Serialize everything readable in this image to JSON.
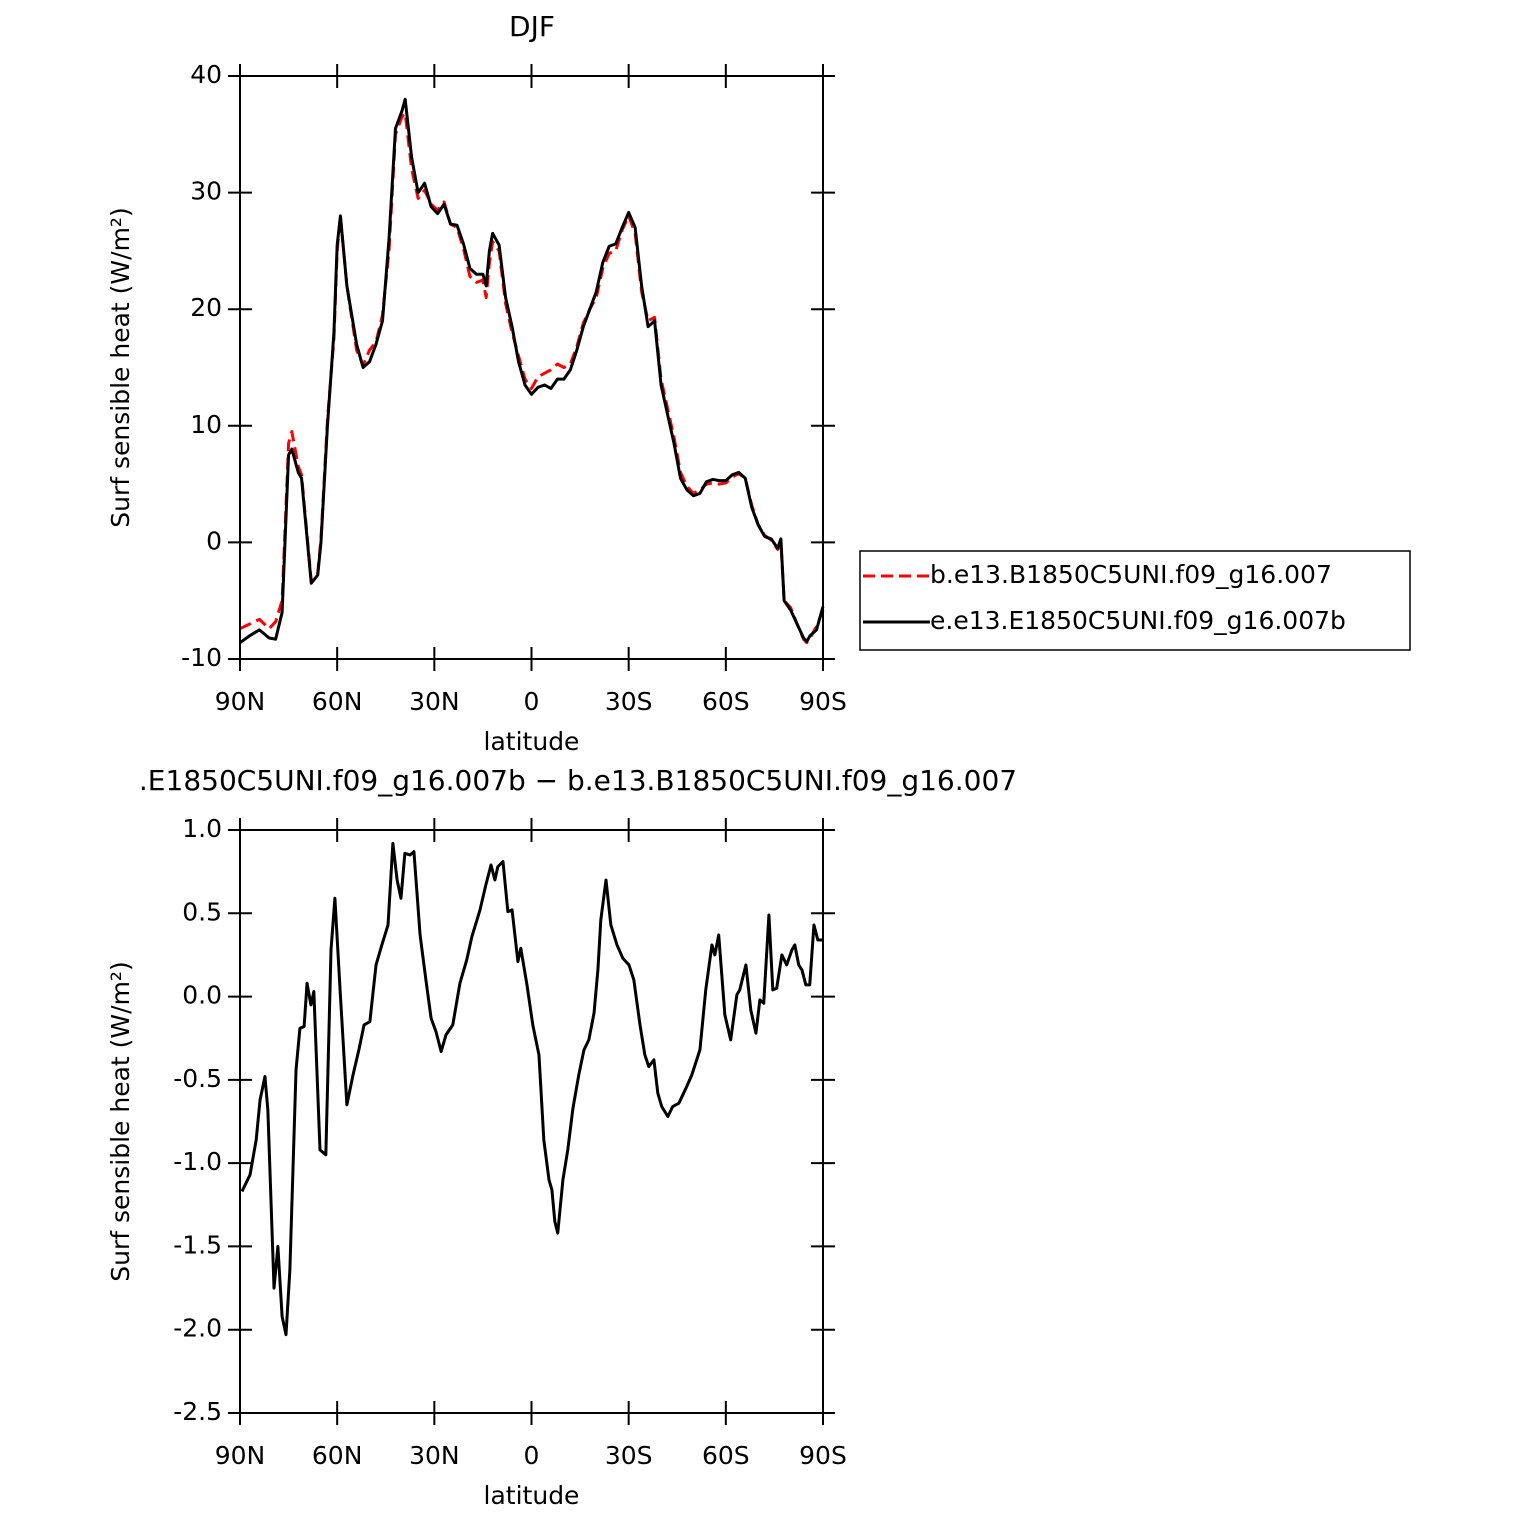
{
  "chart_data": [
    {
      "type": "line",
      "title": "DJF",
      "xlabel": "latitude",
      "ylabel": "Surf sensible heat (W/m²)",
      "xlim": [
        90,
        -90
      ],
      "ylim": [
        -10,
        40
      ],
      "xticks": [
        {
          "value": 90,
          "label": "90N"
        },
        {
          "value": 60,
          "label": "60N"
        },
        {
          "value": 30,
          "label": "30N"
        },
        0,
        {
          "value": -30,
          "label": "30S"
        },
        {
          "value": -60,
          "label": "60S"
        },
        {
          "value": -90,
          "label": "90S"
        }
      ],
      "yticks": [
        -10,
        0,
        10,
        20,
        30,
        40
      ],
      "legend": "right",
      "x": [
        90,
        87,
        84,
        81,
        79,
        77,
        75,
        74,
        72,
        71,
        68,
        66,
        65,
        63,
        61,
        60,
        59,
        57,
        54,
        52,
        50,
        48,
        46,
        44,
        42,
        40,
        39,
        37,
        35,
        33,
        31,
        29,
        27,
        25,
        23,
        21,
        19,
        17,
        15,
        14,
        13,
        12,
        10,
        8,
        6,
        4,
        2,
        0,
        -2,
        -4,
        -6,
        -8,
        -10,
        -12,
        -14,
        -16,
        -18,
        -20,
        -22,
        -24,
        -26,
        -28,
        -30,
        -32,
        -34,
        -36,
        -38,
        -40,
        -42,
        -44,
        -46,
        -48,
        -50,
        -52,
        -54,
        -56,
        -58,
        -60,
        -62,
        -64,
        -66,
        -68,
        -70,
        -72,
        -74,
        -76,
        -77,
        -78,
        -80,
        -82,
        -84,
        -85,
        -86,
        -88,
        -90
      ],
      "series": [
        {
          "name": "b.e13.B1850C5UNI.f09_g16.007",
          "color": "#ff0000",
          "dashed": true,
          "values": [
            -7.4,
            -7.0,
            -6.6,
            -7.4,
            -6.8,
            -5,
            8.5,
            9.5,
            6.5,
            5.8,
            -3.3,
            -2.6,
            0.3,
            10.5,
            17.5,
            25,
            28,
            22,
            16.5,
            15.2,
            16.5,
            17.2,
            19.5,
            25,
            35,
            36.5,
            36.8,
            32,
            29.5,
            30.2,
            29,
            28.5,
            29.2,
            27.3,
            27,
            25.2,
            22.8,
            22.3,
            22.5,
            21,
            24,
            25.8,
            25,
            20.5,
            18,
            16,
            14,
            13.2,
            14.2,
            14.5,
            14.8,
            15.3,
            15,
            15.3,
            16.8,
            18.8,
            20,
            21,
            23.5,
            24.8,
            25,
            26.8,
            28,
            26.5,
            21.5,
            19,
            19.3,
            14,
            11.5,
            9,
            6,
            4.8,
            4.2,
            4.5,
            5,
            5.1,
            5,
            5.1,
            5.6,
            5.9,
            5.5,
            3.2,
            1.5,
            0.6,
            0.2,
            -0.6,
            0,
            -5,
            -5.6,
            -7,
            -8.3,
            -8.6,
            -8.2,
            -7.2,
            -5.8
          ]
        },
        {
          "name": "e.e13.E1850C5UNI.f09_g16.007b",
          "color": "#000000",
          "dashed": false,
          "values": [
            -8.6,
            -8.0,
            -7.5,
            -8.2,
            -8.3,
            -6,
            7.5,
            8,
            6,
            5.5,
            -3.5,
            -2.8,
            0,
            10,
            18,
            25.5,
            28,
            22,
            17,
            15,
            15.5,
            17,
            19,
            26,
            35.5,
            37,
            38,
            33,
            30,
            30.8,
            28.8,
            28.2,
            29,
            27.3,
            27.2,
            25.6,
            23.5,
            23,
            23,
            22,
            25,
            26.5,
            25.5,
            21,
            18.5,
            15.5,
            13.5,
            12.7,
            13.3,
            13.5,
            13.2,
            14,
            14,
            14.8,
            16.5,
            18.5,
            20,
            21.5,
            24,
            25.4,
            25.6,
            27,
            28.3,
            27,
            22,
            18.5,
            19,
            13.5,
            11,
            8.5,
            5.5,
            4.5,
            4,
            4.2,
            5.2,
            5.4,
            5.3,
            5.3,
            5.8,
            6,
            5.5,
            3,
            1.5,
            0.5,
            0.3,
            -0.5,
            0.3,
            -5,
            -5.8,
            -7,
            -8.2,
            -8.5,
            -8,
            -7.5,
            -5.5
          ]
        }
      ]
    },
    {
      "type": "line",
      "title": ".E1850C5UNI.f09_g16.007b − b.e13.B1850C5UNI.f09_g16.007",
      "xlabel": "latitude",
      "ylabel": "Surf sensible heat (W/m²)",
      "xlim": [
        90,
        -90
      ],
      "ylim": [
        -2.5,
        1.0
      ],
      "xticks": [
        {
          "value": 90,
          "label": "90N"
        },
        {
          "value": 60,
          "label": "60N"
        },
        {
          "value": 30,
          "label": "30N"
        },
        0,
        {
          "value": -30,
          "label": "30S"
        },
        {
          "value": -60,
          "label": "60S"
        },
        {
          "value": -90,
          "label": "90S"
        }
      ],
      "yticks": [
        -2.5,
        {
          "value": -2,
          "label": "-2.0"
        },
        -1.5,
        {
          "value": -1,
          "label": "-1.0"
        },
        -0.5,
        {
          "value": 0,
          "label": "0.0"
        },
        0.5,
        {
          "value": 1,
          "label": "1.0"
        }
      ],
      "color": "#000000",
      "x": [
        89.4,
        86.9,
        85,
        83.8,
        82.3,
        81.4,
        79.5,
        78.3,
        77,
        75.8,
        74.6,
        72.7,
        71.5,
        70.2,
        69.3,
        68.1,
        67.2,
        65.3,
        63.5,
        61.9,
        60.7,
        59.1,
        57,
        55.1,
        53.3,
        51.7,
        49.9,
        48,
        46.2,
        44.3,
        42.8,
        41.5,
        40.3,
        39.1,
        37.5,
        36.3,
        34.4,
        32.6,
        31,
        29.5,
        27.9,
        26.4,
        24.3,
        22.1,
        20,
        18.4,
        15.9,
        14.1,
        12.5,
        11.3,
        10.4,
        8.8,
        7.3,
        6,
        4.2,
        3.3,
        1.4,
        -0.4,
        -2.3,
        -3.8,
        -5.4,
        -6.3,
        -7.2,
        -8.1,
        -9.7,
        -11.2,
        -12.8,
        -14.6,
        -16.2,
        -17.7,
        -19.3,
        -20.5,
        -21.4,
        -23,
        -24.5,
        -26.4,
        -28.2,
        -30.1,
        -31.6,
        -33.5,
        -35,
        -36.2,
        -37.8,
        -39,
        -40.2,
        -42.1,
        -43.6,
        -45.5,
        -47.7,
        -49.5,
        -52,
        -53.8,
        -55.7,
        -56.6,
        -57.8,
        -59.7,
        -61.5,
        -63.4,
        -64.3,
        -66.2,
        -67.7,
        -69.3,
        -70.5,
        -71.7,
        -73.3,
        -74.5,
        -75.7,
        -77.3,
        -78.8,
        -80.4,
        -81.3,
        -82.5,
        -83.5,
        -84.7,
        -85.9,
        -87.2,
        -88.4,
        -90
      ],
      "values": [
        -1.17,
        -1.07,
        -0.86,
        -0.62,
        -0.48,
        -0.68,
        -1.75,
        -1.5,
        -1.92,
        -2.03,
        -1.64,
        -0.44,
        -0.19,
        -0.18,
        0.08,
        -0.05,
        0.03,
        -0.92,
        -0.95,
        0.28,
        0.59,
        0.04,
        -0.65,
        -0.47,
        -0.32,
        -0.17,
        -0.15,
        0.19,
        0.31,
        0.43,
        0.92,
        0.7,
        0.59,
        0.86,
        0.85,
        0.87,
        0.37,
        0.1,
        -0.13,
        -0.21,
        -0.33,
        -0.23,
        -0.17,
        0.08,
        0.22,
        0.36,
        0.52,
        0.67,
        0.79,
        0.7,
        0.78,
        0.81,
        0.51,
        0.52,
        0.21,
        0.29,
        0.07,
        -0.17,
        -0.35,
        -0.86,
        -1.1,
        -1.16,
        -1.35,
        -1.42,
        -1.1,
        -0.92,
        -0.67,
        -0.47,
        -0.32,
        -0.26,
        -0.1,
        0.16,
        0.46,
        0.7,
        0.43,
        0.31,
        0.23,
        0.19,
        0.1,
        -0.17,
        -0.35,
        -0.42,
        -0.38,
        -0.58,
        -0.66,
        -0.72,
        -0.66,
        -0.64,
        -0.55,
        -0.47,
        -0.32,
        0.04,
        0.31,
        0.25,
        0.37,
        -0.11,
        -0.26,
        0.01,
        0.04,
        0.19,
        -0.08,
        -0.22,
        -0.02,
        -0.04,
        0.49,
        0.04,
        0.05,
        0.25,
        0.19,
        0.28,
        0.31,
        0.19,
        0.16,
        0.07,
        0.07,
        0.43,
        0.34,
        0.34
      ]
    }
  ]
}
